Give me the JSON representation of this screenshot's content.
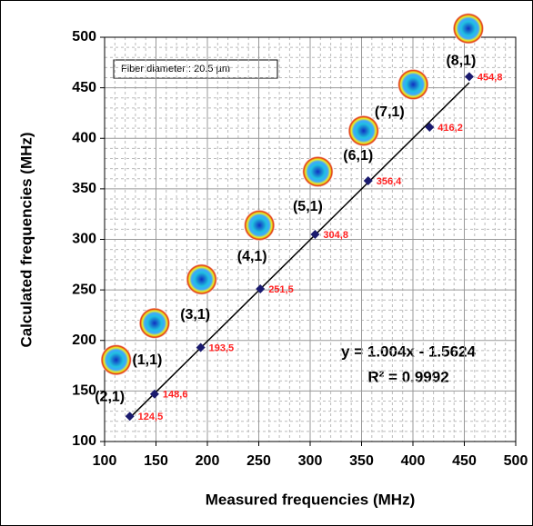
{
  "chart_data": {
    "type": "scatter",
    "xlabel": "Measured frequencies (MHz)",
    "ylabel": "Calculated frequencies (MHz)",
    "annotation": "Fiber diameter : 20.5 µm",
    "x": [
      124.5,
      148.6,
      193.5,
      251.5,
      304.8,
      356.4,
      416.2,
      454.8
    ],
    "values": [
      125,
      147,
      193,
      251,
      305,
      358,
      411,
      461
    ],
    "value_labels": [
      "124,5",
      "148,6",
      "193,5",
      "251,5",
      "304,8",
      "356,4",
      "416,2",
      "454,8"
    ],
    "point_labels": [
      "(2,1)",
      "(1,1)",
      "(3,1)",
      "(4,1)",
      "(5,1)",
      "(6,1)",
      "(7,1)",
      "(8,1)"
    ],
    "color": "#1a1a6e",
    "label_color": "#ff2020",
    "trendline": {
      "slope": 1.004,
      "intercept": -1.5624,
      "equation": "y = 1.004x - 1.5624",
      "r2": "R² = 0.9992"
    },
    "xlim": [
      100,
      500
    ],
    "xticks": [
      100,
      150,
      200,
      250,
      300,
      350,
      400,
      450,
      500
    ],
    "ylim": [
      100,
      500
    ],
    "yticks": [
      100,
      150,
      200,
      250,
      300,
      350,
      400,
      450,
      500
    ],
    "grid": true,
    "minor_grid": true
  }
}
